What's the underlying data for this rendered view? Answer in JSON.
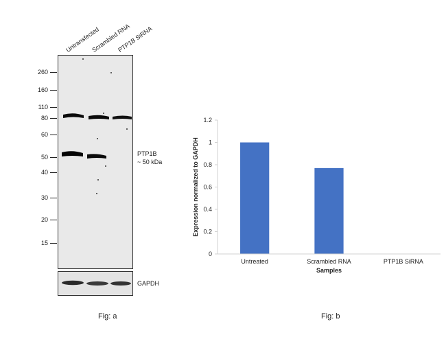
{
  "fig_a": {
    "lanes": [
      "Untransfected",
      "Scrambled RNA",
      "PTP1B SiRNA"
    ],
    "markers": [
      "260",
      "160",
      "110",
      "80",
      "60",
      "50",
      "40",
      "30",
      "20",
      "15"
    ],
    "target_label": "PTP1B",
    "target_size": "~ 50 kDa",
    "loading_label": "GAPDH",
    "caption": "Fig: a"
  },
  "fig_b": {
    "caption": "Fig: b"
  },
  "chart_data": {
    "type": "bar",
    "categories": [
      "Untreated",
      "Scrambled RNA",
      "PTP1B SiRNA"
    ],
    "values": [
      1.0,
      0.77,
      0.0
    ],
    "xlabel": "Samples",
    "ylabel": "Expression normalized to GAPDH",
    "ylim": [
      0,
      1.2
    ],
    "yticks": [
      "0",
      "0.2",
      "0.4",
      "0.6",
      "0.8",
      "1",
      "1.2"
    ],
    "bar_color": "#4472C4",
    "grid": false
  }
}
